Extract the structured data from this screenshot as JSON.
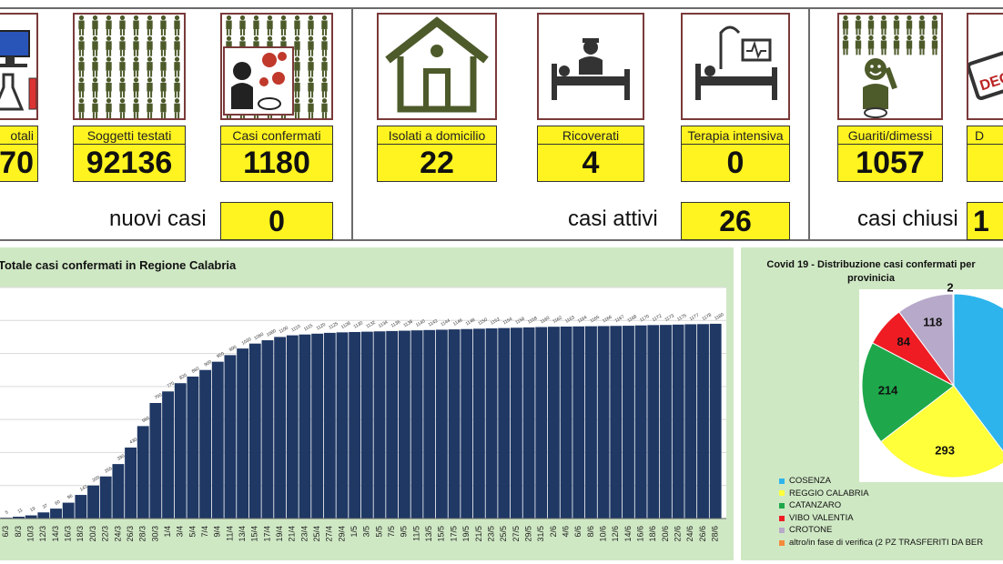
{
  "cards": [
    {
      "label": "otali",
      "value": "70"
    },
    {
      "label": "Soggetti testati",
      "value": "92136"
    },
    {
      "label": "Casi confermati",
      "value": "1180"
    },
    {
      "label": "Isolati a domicilio",
      "value": "22"
    },
    {
      "label": "Ricoverati",
      "value": "4"
    },
    {
      "label": "Terapia intensiva",
      "value": "0"
    },
    {
      "label": "Guariti/dimessi",
      "value": "1057"
    },
    {
      "label": "D",
      "value": ""
    }
  ],
  "summary": {
    "nuovi_label": "nuovi casi",
    "nuovi_value": "0",
    "attivi_label": "casi attivi",
    "attivi_value": "26",
    "chiusi_label": "casi chiusi",
    "chiusi_value": "1"
  },
  "badge_text": "DEC",
  "colors": {
    "yellow": "#fff41f",
    "panel_green": "#cfe8c4",
    "bar": "#1f3864",
    "icon_green": "#4d5a2a"
  },
  "chart_data": [
    {
      "type": "bar",
      "title": "Totale casi confermati in Regione Calabria",
      "categories": [
        "6/3",
        "8/3",
        "10/3",
        "12/3",
        "14/3",
        "16/3",
        "18/3",
        "20/3",
        "22/3",
        "24/3",
        "26/3",
        "28/3",
        "30/3",
        "1/4",
        "3/4",
        "5/4",
        "7/4",
        "9/4",
        "11/4",
        "13/4",
        "15/4",
        "17/4",
        "19/4",
        "21/4",
        "23/4",
        "25/4",
        "27/4",
        "29/4",
        "1/5",
        "3/5",
        "5/5",
        "7/5",
        "9/5",
        "11/5",
        "13/5",
        "15/5",
        "17/5",
        "19/5",
        "21/5",
        "23/5",
        "25/5",
        "27/5",
        "29/5",
        "31/5",
        "2/6",
        "4/6",
        "6/6",
        "8/6",
        "10/6",
        "12/6",
        "14/6",
        "16/6",
        "18/6",
        "20/6",
        "22/6",
        "24/6",
        "26/6",
        "28/6"
      ],
      "values": [
        5,
        11,
        19,
        37,
        60,
        96,
        143,
        200,
        255,
        330,
        430,
        560,
        700,
        770,
        820,
        860,
        900,
        950,
        990,
        1030,
        1060,
        1080,
        1100,
        1110,
        1115,
        1120,
        1125,
        1128,
        1130,
        1132,
        1134,
        1136,
        1138,
        1140,
        1142,
        1144,
        1146,
        1148,
        1150,
        1152,
        1154,
        1156,
        1158,
        1160,
        1162,
        1163,
        1164,
        1165,
        1166,
        1167,
        1168,
        1170,
        1172,
        1173,
        1175,
        1177,
        1178,
        1180
      ],
      "ylim": [
        0,
        1400
      ]
    },
    {
      "type": "pie",
      "title": "Covid 19 - Distribuzione casi confermati per provinicia",
      "slices": [
        {
          "name": "COSENZA",
          "value": 469,
          "label": "",
          "color": "#2eb4ec"
        },
        {
          "name": "REGGIO CALABRIA",
          "value": 293,
          "label": "293",
          "color": "#ffff3a"
        },
        {
          "name": "CATANZARO",
          "value": 214,
          "label": "214",
          "color": "#1ea84b"
        },
        {
          "name": "VIBO VALENTIA",
          "value": 84,
          "label": "84",
          "color": "#ef1c24"
        },
        {
          "name": "CROTONE",
          "value": 118,
          "label": "118",
          "color": "#b7a9c9"
        },
        {
          "name": "altro/in fase di verifica (2 PZ TRASFERITI DA BER",
          "value": 2,
          "label": "2",
          "color": "#f58a3a"
        }
      ]
    }
  ]
}
